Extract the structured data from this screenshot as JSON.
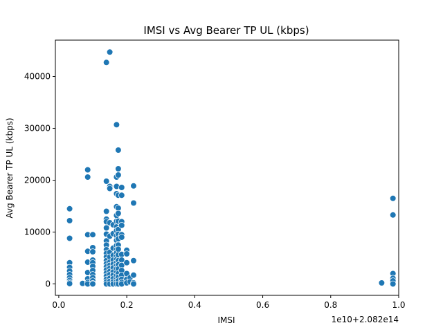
{
  "chart_data": {
    "type": "scatter",
    "title": "IMSI vs Avg Bearer TP UL (kbps)",
    "xlabel": "IMSI",
    "ylabel": "Avg Bearer TP UL (kbps)",
    "x_offset_label": "1e10+2.082e14",
    "xlim": [
      -0.01,
      1.0
    ],
    "ylim": [
      -2200,
      47000
    ],
    "xticks": [
      0.0,
      0.2,
      0.4,
      0.6,
      0.8,
      1.0
    ],
    "xtick_labels": [
      "0.0",
      "0.2",
      "0.4",
      "0.6",
      "0.8",
      "1.0"
    ],
    "yticks": [
      0,
      10000,
      20000,
      30000,
      40000
    ],
    "ytick_labels": [
      "0",
      "10000",
      "20000",
      "30000",
      "40000"
    ],
    "grid": false,
    "marker_color": "#1f77b4",
    "marker_edge_color": "#ffffff",
    "points": [
      [
        0.032,
        14500
      ],
      [
        0.032,
        12200
      ],
      [
        0.032,
        8800
      ],
      [
        0.032,
        4100
      ],
      [
        0.032,
        3200
      ],
      [
        0.032,
        2500
      ],
      [
        0.032,
        1800
      ],
      [
        0.032,
        1200
      ],
      [
        0.032,
        700
      ],
      [
        0.032,
        300
      ],
      [
        0.032,
        50
      ],
      [
        0.07,
        100
      ],
      [
        0.085,
        22000
      ],
      [
        0.085,
        20600
      ],
      [
        0.085,
        9500
      ],
      [
        0.085,
        6300
      ],
      [
        0.085,
        4200
      ],
      [
        0.085,
        2200
      ],
      [
        0.085,
        1000
      ],
      [
        0.085,
        300
      ],
      [
        0.085,
        0
      ],
      [
        0.1,
        9500
      ],
      [
        0.1,
        7000
      ],
      [
        0.1,
        6200
      ],
      [
        0.1,
        4600
      ],
      [
        0.1,
        4100
      ],
      [
        0.1,
        3400
      ],
      [
        0.1,
        2600
      ],
      [
        0.1,
        1800
      ],
      [
        0.1,
        1200
      ],
      [
        0.1,
        600
      ],
      [
        0.1,
        100
      ],
      [
        0.1,
        0
      ],
      [
        0.14,
        42700
      ],
      [
        0.14,
        19800
      ],
      [
        0.14,
        14000
      ],
      [
        0.14,
        12500
      ],
      [
        0.14,
        12000
      ],
      [
        0.14,
        10800
      ],
      [
        0.14,
        9600
      ],
      [
        0.14,
        8300
      ],
      [
        0.14,
        7500
      ],
      [
        0.14,
        6600
      ],
      [
        0.14,
        5900
      ],
      [
        0.14,
        5200
      ],
      [
        0.14,
        4500
      ],
      [
        0.14,
        3900
      ],
      [
        0.14,
        3300
      ],
      [
        0.14,
        2700
      ],
      [
        0.14,
        2100
      ],
      [
        0.14,
        1500
      ],
      [
        0.14,
        900
      ],
      [
        0.14,
        400
      ],
      [
        0.14,
        0
      ],
      [
        0.15,
        44700
      ],
      [
        0.15,
        18800
      ],
      [
        0.15,
        18400
      ],
      [
        0.15,
        11800
      ],
      [
        0.15,
        9200
      ],
      [
        0.15,
        6100
      ],
      [
        0.15,
        5200
      ],
      [
        0.15,
        4200
      ],
      [
        0.15,
        3600
      ],
      [
        0.15,
        3000
      ],
      [
        0.15,
        2400
      ],
      [
        0.15,
        1800
      ],
      [
        0.15,
        1100
      ],
      [
        0.15,
        500
      ],
      [
        0.15,
        0
      ],
      [
        0.16,
        11400
      ],
      [
        0.16,
        9700
      ],
      [
        0.16,
        6900
      ],
      [
        0.16,
        5500
      ],
      [
        0.16,
        4600
      ],
      [
        0.16,
        3800
      ],
      [
        0.16,
        3100
      ],
      [
        0.16,
        2300
      ],
      [
        0.16,
        1700
      ],
      [
        0.16,
        1000
      ],
      [
        0.16,
        400
      ],
      [
        0.16,
        0
      ],
      [
        0.17,
        30700
      ],
      [
        0.17,
        20600
      ],
      [
        0.17,
        18800
      ],
      [
        0.17,
        17400
      ],
      [
        0.17,
        14900
      ],
      [
        0.17,
        13200
      ],
      [
        0.17,
        12100
      ],
      [
        0.17,
        11000
      ],
      [
        0.17,
        10300
      ],
      [
        0.17,
        9300
      ],
      [
        0.17,
        8400
      ],
      [
        0.17,
        7400
      ],
      [
        0.17,
        6600
      ],
      [
        0.17,
        6000
      ],
      [
        0.17,
        5300
      ],
      [
        0.17,
        4700
      ],
      [
        0.17,
        4100
      ],
      [
        0.17,
        3500
      ],
      [
        0.17,
        2900
      ],
      [
        0.17,
        2200
      ],
      [
        0.17,
        1600
      ],
      [
        0.17,
        900
      ],
      [
        0.17,
        400
      ],
      [
        0.17,
        0
      ],
      [
        0.175,
        25800
      ],
      [
        0.175,
        22200
      ],
      [
        0.175,
        21000
      ],
      [
        0.175,
        17100
      ],
      [
        0.175,
        14600
      ],
      [
        0.175,
        13600
      ],
      [
        0.175,
        12100
      ],
      [
        0.175,
        10500
      ],
      [
        0.175,
        9600
      ],
      [
        0.175,
        8700
      ],
      [
        0.175,
        7500
      ],
      [
        0.175,
        6700
      ],
      [
        0.175,
        5600
      ],
      [
        0.175,
        4500
      ],
      [
        0.175,
        3700
      ],
      [
        0.175,
        2900
      ],
      [
        0.175,
        2000
      ],
      [
        0.175,
        1300
      ],
      [
        0.175,
        600
      ],
      [
        0.175,
        0
      ],
      [
        0.185,
        18600
      ],
      [
        0.185,
        17100
      ],
      [
        0.185,
        12000
      ],
      [
        0.185,
        11300
      ],
      [
        0.185,
        9500
      ],
      [
        0.185,
        9000
      ],
      [
        0.185,
        5700
      ],
      [
        0.185,
        4600
      ],
      [
        0.185,
        3600
      ],
      [
        0.185,
        2600
      ],
      [
        0.185,
        1700
      ],
      [
        0.185,
        900
      ],
      [
        0.185,
        300
      ],
      [
        0.185,
        0
      ],
      [
        0.2,
        6500
      ],
      [
        0.2,
        5800
      ],
      [
        0.2,
        4100
      ],
      [
        0.2,
        2000
      ],
      [
        0.2,
        900
      ],
      [
        0.2,
        200
      ],
      [
        0.21,
        1200
      ],
      [
        0.21,
        400
      ],
      [
        0.22,
        18900
      ],
      [
        0.22,
        15600
      ],
      [
        0.22,
        4500
      ],
      [
        0.22,
        1700
      ],
      [
        0.22,
        200
      ],
      [
        0.22,
        0
      ],
      [
        0.95,
        200
      ],
      [
        0.983,
        16500
      ],
      [
        0.983,
        13300
      ],
      [
        0.983,
        2000
      ],
      [
        0.983,
        1100
      ],
      [
        0.983,
        600
      ],
      [
        0.983,
        0
      ]
    ]
  }
}
